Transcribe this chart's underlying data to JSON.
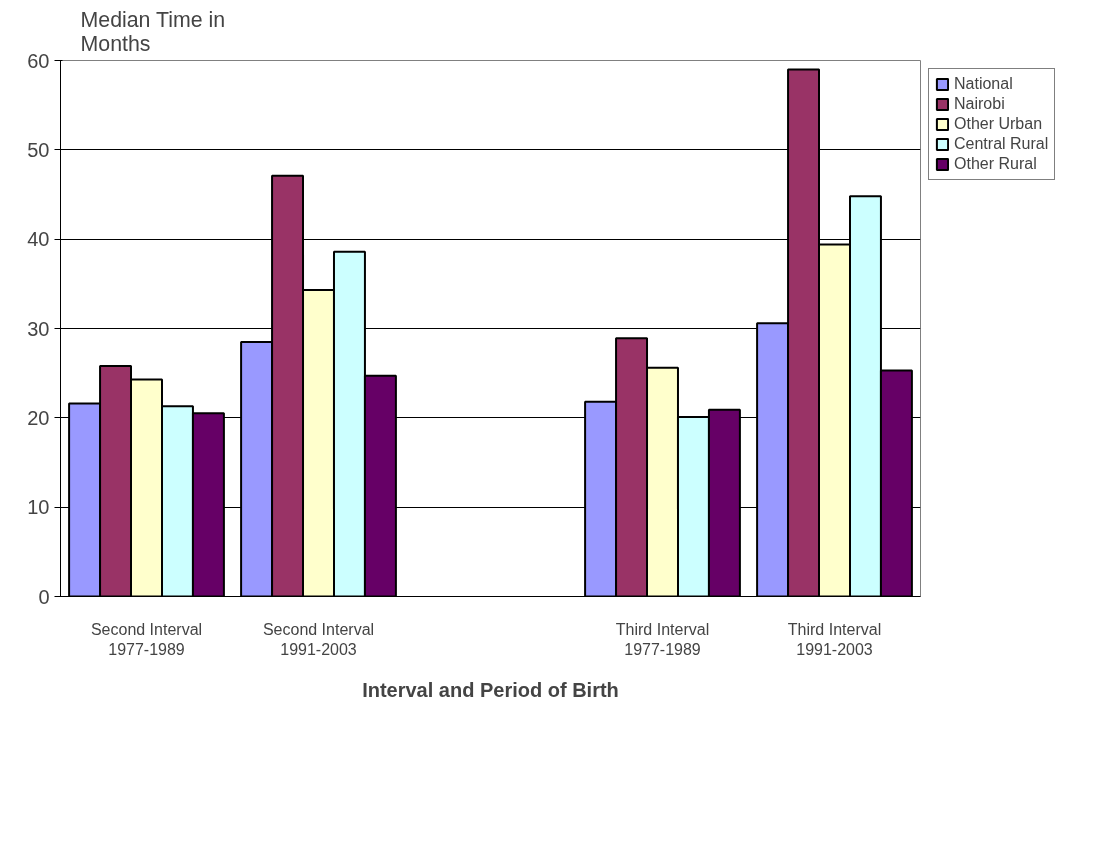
{
  "chart_data": {
    "type": "bar",
    "ylabel": "Median Time in\nMonths",
    "xlabel": "Interval and Period of Birth",
    "categories": [
      "Second Interval\n1977-1989",
      "Second Interval\n1991-2003",
      null,
      "Third Interval\n1977-1989",
      "Third Interval\n1991-2003"
    ],
    "series": [
      {
        "name": "National",
        "color": "#9999ff",
        "values": [
          21.6,
          28.5,
          null,
          21.8,
          30.6
        ]
      },
      {
        "name": "Nairobi",
        "color": "#993366",
        "values": [
          25.8,
          47.1,
          null,
          28.9,
          59.0
        ]
      },
      {
        "name": "Other Urban",
        "color": "#ffffcc",
        "values": [
          24.3,
          34.3,
          null,
          25.6,
          39.4
        ]
      },
      {
        "name": "Central Rural",
        "color": "#ccffff",
        "values": [
          21.3,
          38.6,
          null,
          20.1,
          44.8
        ]
      },
      {
        "name": "Other Rural",
        "color": "#660066",
        "values": [
          20.5,
          24.7,
          null,
          20.9,
          25.3
        ]
      }
    ],
    "ylim": [
      0,
      60
    ],
    "yticks": [
      0,
      10,
      20,
      30,
      40,
      50,
      60
    ],
    "grid": "y",
    "legend": "top right"
  }
}
